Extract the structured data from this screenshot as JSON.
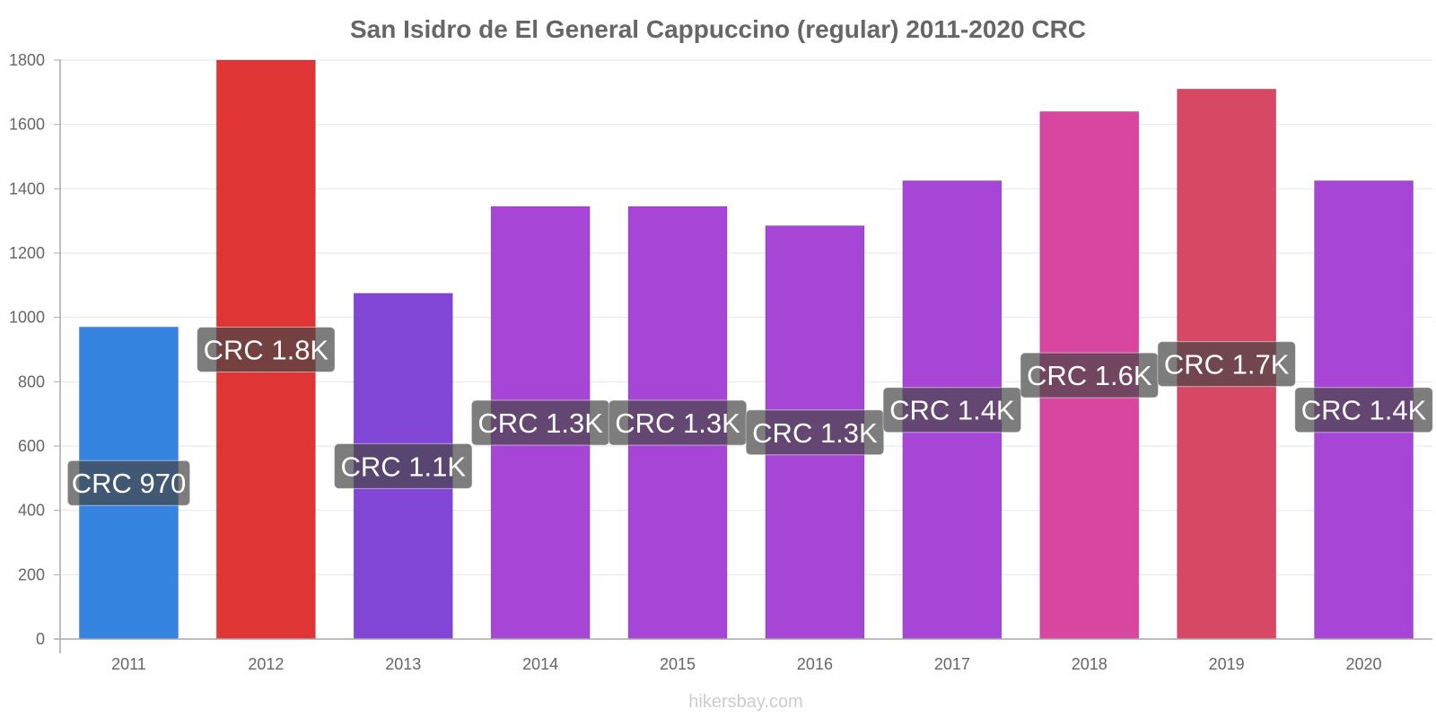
{
  "chart_data": {
    "type": "bar",
    "title": "San Isidro de El General Cappuccino (regular) 2011-2020 CRC",
    "categories": [
      "2011",
      "2012",
      "2013",
      "2014",
      "2015",
      "2016",
      "2017",
      "2018",
      "2019",
      "2020"
    ],
    "values": [
      970,
      1800,
      1075,
      1345,
      1345,
      1285,
      1425,
      1640,
      1710,
      1425
    ],
    "data_labels": [
      "CRC 970",
      "CRC 1.8K",
      "CRC 1.1K",
      "CRC 1.3K",
      "CRC 1.3K",
      "CRC 1.3K",
      "CRC 1.4K",
      "CRC 1.6K",
      "CRC 1.7K",
      "CRC 1.4K"
    ],
    "bar_colors": [
      "#3584df",
      "#e03535",
      "#8246d6",
      "#a746d6",
      "#a746d6",
      "#a746d6",
      "#a746d6",
      "#d946a0",
      "#d64864",
      "#a746d6"
    ],
    "ylim": [
      0,
      1800
    ],
    "yticks": [
      "0",
      "200",
      "400",
      "600",
      "800",
      "1000",
      "1200",
      "1400",
      "1600",
      "1800"
    ],
    "grid": true,
    "xlabel": "",
    "ylabel": ""
  },
  "watermark": "hikersbay.com"
}
